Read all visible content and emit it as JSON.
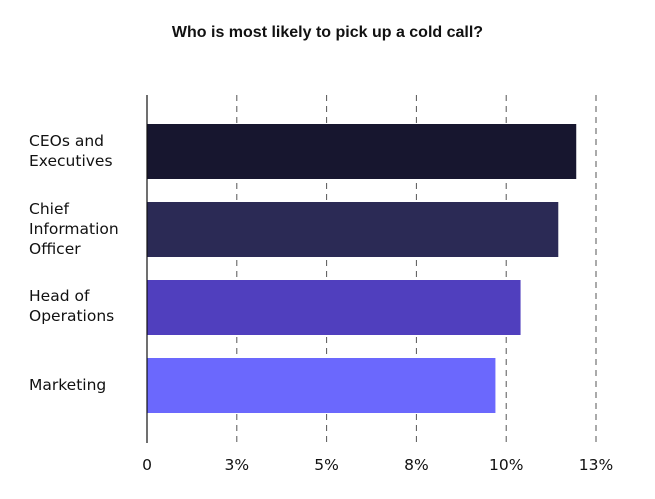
{
  "chart_data": {
    "type": "bar",
    "orientation": "horizontal",
    "title": "Who is most likely to pick up a cold call?",
    "categories": [
      "CEOs and\nExecutives",
      "Chief\nInformation\nOfficer",
      "Head of\nOperations",
      "Marketing"
    ],
    "values": [
      11.95,
      11.45,
      10.4,
      9.7
    ],
    "xticks": [
      0,
      2.5,
      5,
      7.5,
      10,
      12.5
    ],
    "xtick_labels": [
      "0",
      "3%",
      "5%",
      "8%",
      "10%",
      "13%"
    ],
    "xlim": [
      0,
      12.5
    ],
    "grid": "vertical dashed",
    "legend": "none",
    "colors": [
      "#17162f",
      "#2b2a55",
      "#503fbe",
      "#6b68fd"
    ]
  }
}
